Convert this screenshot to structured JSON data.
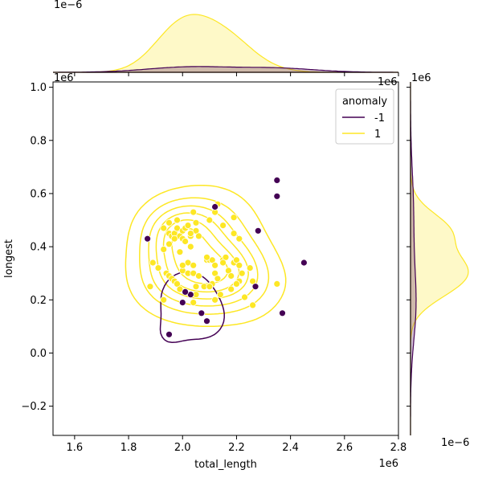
{
  "chart_data": {
    "type": "scatter",
    "subtype": "jointplot-kde",
    "main": {
      "xlabel": "total_length",
      "ylabel": "longest",
      "xlim": [
        1.52,
        2.8
      ],
      "ylim": [
        -0.31,
        1.02
      ],
      "x_scale_label": "1e6",
      "y_scale_label": "1e6",
      "x_ticks": [
        1.6,
        1.8,
        2.0,
        2.2,
        2.4,
        2.6,
        2.8
      ],
      "x_tick_labels": [
        "1.6",
        "1.8",
        "2.0",
        "2.2",
        "2.4",
        "2.6",
        "2.8"
      ],
      "y_ticks": [
        -0.2,
        0.0,
        0.2,
        0.4,
        0.6,
        0.8,
        1.0
      ],
      "y_tick_labels": [
        "−0.2",
        "0.0",
        "0.2",
        "0.4",
        "0.6",
        "0.8",
        "1.0"
      ],
      "grid": false
    },
    "top_marginal": {
      "scale_label": "1e−6",
      "x_scale_label": "1e6"
    },
    "right_marginal": {
      "scale_label": "1e−6",
      "y_scale_label": "1e6"
    },
    "legend": {
      "title": "anomaly",
      "placement": "top-right",
      "entries": [
        "-1",
        "1"
      ]
    },
    "colors": {
      "-1": "#440154",
      "1": "#fde725"
    },
    "series": [
      {
        "name": "1",
        "points": [
          [
            1.93,
            0.47
          ],
          [
            1.95,
            0.45
          ],
          [
            1.96,
            0.44
          ],
          [
            1.97,
            0.45
          ],
          [
            1.98,
            0.47
          ],
          [
            1.99,
            0.44
          ],
          [
            2.0,
            0.46
          ],
          [
            2.01,
            0.47
          ],
          [
            2.0,
            0.43
          ],
          [
            1.97,
            0.43
          ],
          [
            1.95,
            0.49
          ],
          [
            1.98,
            0.5
          ],
          [
            2.02,
            0.48
          ],
          [
            2.03,
            0.44
          ],
          [
            2.04,
            0.53
          ],
          [
            2.05,
            0.49
          ],
          [
            2.05,
            0.46
          ],
          [
            2.06,
            0.44
          ],
          [
            2.03,
            0.4
          ],
          [
            2.01,
            0.42
          ],
          [
            1.99,
            0.38
          ],
          [
            1.93,
            0.39
          ],
          [
            1.95,
            0.41
          ],
          [
            1.91,
            0.32
          ],
          [
            1.89,
            0.34
          ],
          [
            1.88,
            0.25
          ],
          [
            1.94,
            0.3
          ],
          [
            1.95,
            0.29
          ],
          [
            1.96,
            0.28
          ],
          [
            1.97,
            0.27
          ],
          [
            1.98,
            0.26
          ],
          [
            2.0,
            0.31
          ],
          [
            2.02,
            0.3
          ],
          [
            2.02,
            0.34
          ],
          [
            2.04,
            0.3
          ],
          [
            2.04,
            0.33
          ],
          [
            2.05,
            0.25
          ],
          [
            2.06,
            0.29
          ],
          [
            2.08,
            0.25
          ],
          [
            2.09,
            0.35
          ],
          [
            2.1,
            0.35
          ],
          [
            2.11,
            0.35
          ],
          [
            2.12,
            0.33
          ],
          [
            2.12,
            0.3
          ],
          [
            2.13,
            0.28
          ],
          [
            2.11,
            0.26
          ],
          [
            2.1,
            0.25
          ],
          [
            2.14,
            0.22
          ],
          [
            2.12,
            0.2
          ],
          [
            2.15,
            0.35
          ],
          [
            2.16,
            0.36
          ],
          [
            2.15,
            0.34
          ],
          [
            2.17,
            0.31
          ],
          [
            2.18,
            0.29
          ],
          [
            2.19,
            0.34
          ],
          [
            2.2,
            0.35
          ],
          [
            2.21,
            0.33
          ],
          [
            2.22,
            0.3
          ],
          [
            2.21,
            0.27
          ],
          [
            2.2,
            0.26
          ],
          [
            2.18,
            0.24
          ],
          [
            2.23,
            0.21
          ],
          [
            2.25,
            0.32
          ],
          [
            2.26,
            0.27
          ],
          [
            2.12,
            0.53
          ],
          [
            2.13,
            0.56
          ],
          [
            2.1,
            0.5
          ],
          [
            2.15,
            0.48
          ],
          [
            2.19,
            0.51
          ],
          [
            2.19,
            0.45
          ],
          [
            2.21,
            0.43
          ],
          [
            2.09,
            0.36
          ],
          [
            2.05,
            0.22
          ],
          [
            2.04,
            0.19
          ],
          [
            2.0,
            0.33
          ],
          [
            1.93,
            0.2
          ],
          [
            1.99,
            0.24
          ],
          [
            2.35,
            0.26
          ],
          [
            2.26,
            0.18
          ],
          [
            2.03,
            0.45
          ]
        ]
      },
      {
        "name": "-1",
        "points": [
          [
            1.87,
            0.43
          ],
          [
            2.12,
            0.55
          ],
          [
            2.35,
            0.65
          ],
          [
            2.35,
            0.59
          ],
          [
            2.28,
            0.46
          ],
          [
            2.45,
            0.34
          ],
          [
            2.27,
            0.25
          ],
          [
            2.37,
            0.15
          ],
          [
            2.03,
            0.22
          ],
          [
            2.0,
            0.19
          ],
          [
            2.07,
            0.15
          ],
          [
            2.09,
            0.12
          ],
          [
            1.95,
            0.07
          ],
          [
            2.01,
            0.23
          ]
        ]
      }
    ]
  }
}
